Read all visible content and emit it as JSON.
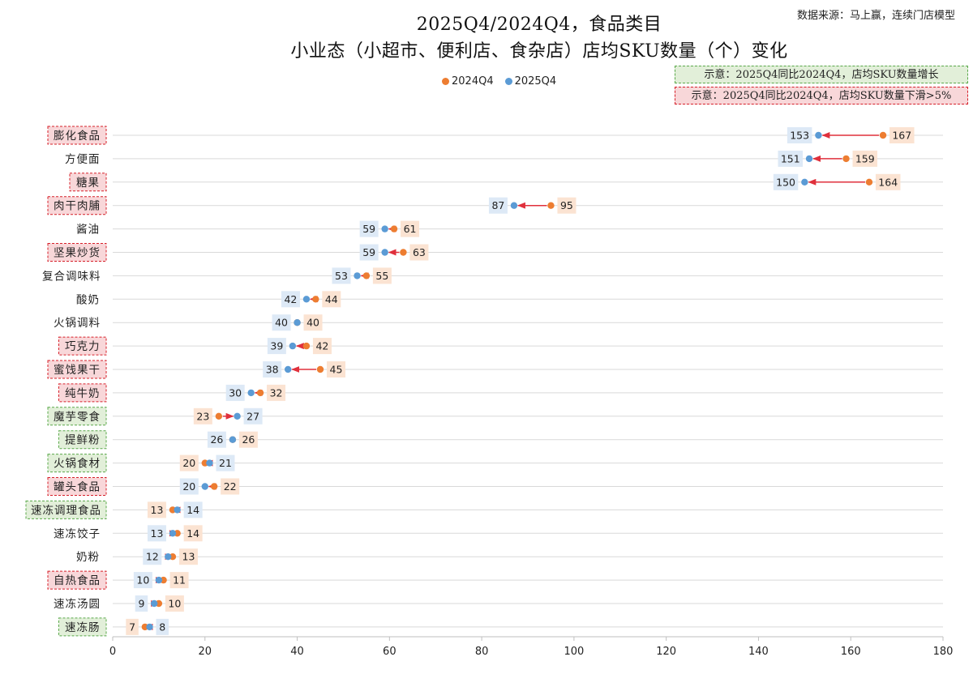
{
  "header": {
    "title_line1": "2025Q4/2024Q4，食品类目",
    "title_line2": "小业态（小超市、便利店、食杂店）店均SKU数量（个）变化",
    "source": "数据来源：马上赢，连续门店模型"
  },
  "legend": {
    "items": [
      {
        "label": "2024Q4",
        "color": "#ed7d31"
      },
      {
        "label": "2025Q4",
        "color": "#5b9bd5"
      }
    ]
  },
  "notes": {
    "growth": "示意：2025Q4同比2024Q4，店均SKU数量增长",
    "decline": "示意：2025Q4同比2024Q4，店均SKU数量下滑>5%"
  },
  "colors": {
    "y2024": "#ed7d31",
    "y2025": "#5b9bd5",
    "arrow": "#e0303c",
    "label_bg_2024": "#fbe3d2",
    "label_bg_2025": "#dde9f6",
    "growth_fill": "#e2efd9",
    "growth_border": "#5aa84a",
    "decline_fill": "#f8d7d9",
    "decline_border": "#d6202a"
  },
  "chart_data": {
    "type": "dumbbell",
    "xlim": [
      0,
      180
    ],
    "x_ticks": [
      0,
      20,
      40,
      60,
      80,
      100,
      120,
      140,
      160,
      180
    ],
    "series": [
      {
        "name": "2024Q4"
      },
      {
        "name": "2025Q4"
      }
    ],
    "categories": [
      {
        "label": "膨化食品",
        "v2024": 167,
        "v2025": 153,
        "flag": "decline"
      },
      {
        "label": "方便面",
        "v2024": 159,
        "v2025": 151,
        "flag": "none"
      },
      {
        "label": "糖果",
        "v2024": 164,
        "v2025": 150,
        "flag": "decline"
      },
      {
        "label": "肉干肉脯",
        "v2024": 95,
        "v2025": 87,
        "flag": "decline"
      },
      {
        "label": "酱油",
        "v2024": 61,
        "v2025": 59,
        "flag": "none"
      },
      {
        "label": "坚果炒货",
        "v2024": 63,
        "v2025": 59,
        "flag": "decline"
      },
      {
        "label": "复合调味料",
        "v2024": 55,
        "v2025": 53,
        "flag": "none"
      },
      {
        "label": "酸奶",
        "v2024": 44,
        "v2025": 42,
        "flag": "none"
      },
      {
        "label": "火锅调料",
        "v2024": 40,
        "v2025": 40,
        "flag": "none"
      },
      {
        "label": "巧克力",
        "v2024": 42,
        "v2025": 39,
        "flag": "decline"
      },
      {
        "label": "蜜饯果干",
        "v2024": 45,
        "v2025": 38,
        "flag": "decline"
      },
      {
        "label": "纯牛奶",
        "v2024": 32,
        "v2025": 30,
        "flag": "decline"
      },
      {
        "label": "魔芋零食",
        "v2024": 23,
        "v2025": 27,
        "flag": "growth"
      },
      {
        "label": "提鲜粉",
        "v2024": 26,
        "v2025": 26,
        "flag": "growth"
      },
      {
        "label": "火锅食材",
        "v2024": 20,
        "v2025": 21,
        "flag": "growth"
      },
      {
        "label": "罐头食品",
        "v2024": 22,
        "v2025": 20,
        "flag": "decline"
      },
      {
        "label": "速冻调理食品",
        "v2024": 13,
        "v2025": 14,
        "flag": "growth"
      },
      {
        "label": "速冻饺子",
        "v2024": 14,
        "v2025": 13,
        "flag": "none"
      },
      {
        "label": "奶粉",
        "v2024": 13,
        "v2025": 12,
        "flag": "none"
      },
      {
        "label": "自热食品",
        "v2024": 11,
        "v2025": 10,
        "flag": "decline"
      },
      {
        "label": "速冻汤圆",
        "v2024": 10,
        "v2025": 9,
        "flag": "none"
      },
      {
        "label": "速冻肠",
        "v2024": 7,
        "v2025": 8,
        "flag": "growth"
      }
    ]
  }
}
